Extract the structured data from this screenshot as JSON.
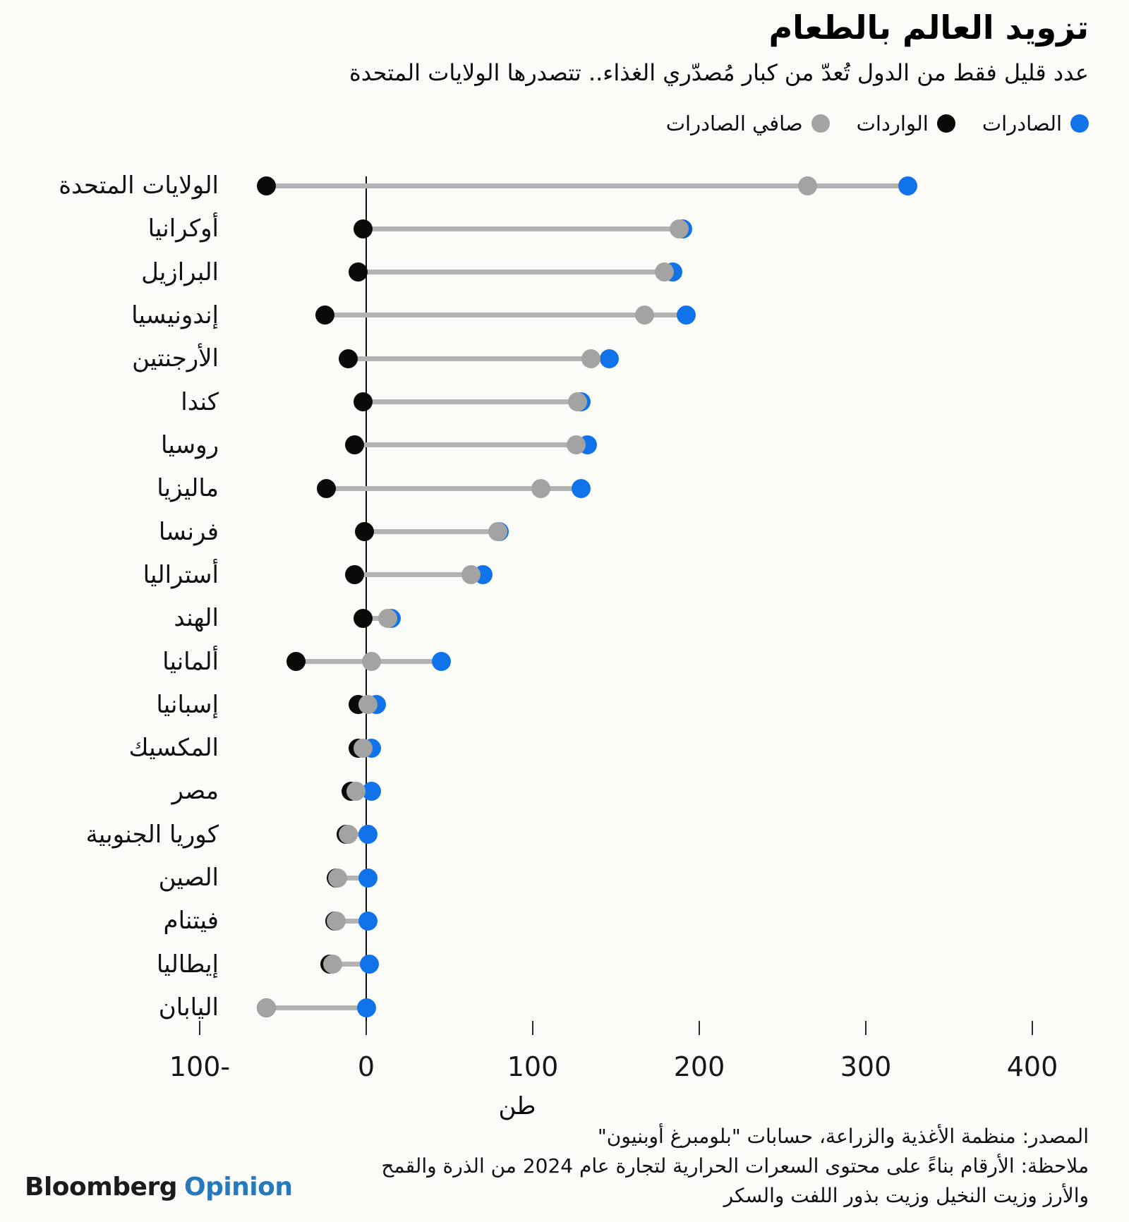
{
  "title": "تزويد العالم بالطعام",
  "subtitle": "عدد قليل فقط من الدول تُعدّ من كبار مُصدّري الغذاء.. تتصدرها الولايات المتحدة",
  "legend": [
    {
      "key": "exports",
      "label": "الصادرات",
      "color": "#1173ea"
    },
    {
      "key": "imports",
      "label": "الواردات",
      "color": "#0a0a0a"
    },
    {
      "key": "net",
      "label": "صافي الصادرات",
      "color": "#a3a3a3"
    }
  ],
  "chart_data": {
    "type": "scatter",
    "variant": "dumbbell-dot-plot",
    "title": "تزويد العالم بالطعام",
    "xlabel": "طن",
    "ylabel": "",
    "xlim": [
      -100,
      400
    ],
    "grid": false,
    "legend_position": "top-right",
    "categories": [
      "الولايات المتحدة",
      "أوكرانيا",
      "البرازيل",
      "إندونيسيا",
      "الأرجنتين",
      "كندا",
      "روسيا",
      "ماليزيا",
      "فرنسا",
      "أستراليا",
      "الهند",
      "ألمانيا",
      "إسبانيا",
      "المكسيك",
      "مصر",
      "كوريا الجنوبية",
      "الصين",
      "فيتنام",
      "إيطاليا",
      "اليابان"
    ],
    "series": [
      {
        "key": "exports",
        "name": "الصادرات",
        "color": "#1173ea",
        "values": [
          325,
          190,
          184,
          192,
          146,
          129,
          133,
          129,
          80,
          70,
          15,
          45,
          6,
          3,
          3,
          1,
          1,
          1,
          2,
          0
        ]
      },
      {
        "key": "imports",
        "name": "الواردات",
        "color": "#0a0a0a",
        "values": [
          -60,
          -2,
          -5,
          -25,
          -11,
          -2,
          -7,
          -24,
          -1,
          -7,
          -2,
          -42,
          -5,
          -5,
          -9,
          -12,
          -18,
          -19,
          -22,
          -60
        ]
      },
      {
        "key": "net",
        "name": "صافي الصادرات",
        "color": "#a3a3a3",
        "values": [
          265,
          188,
          179,
          167,
          135,
          127,
          126,
          105,
          79,
          63,
          13,
          3,
          1,
          -2,
          -6,
          -11,
          -17,
          -18,
          -20,
          -60
        ]
      }
    ],
    "x_ticks": [
      {
        "value": -100,
        "label": "100-"
      },
      {
        "value": 0,
        "label": "0"
      },
      {
        "value": 100,
        "label": "100"
      },
      {
        "value": 200,
        "label": "200"
      },
      {
        "value": 300,
        "label": "300"
      },
      {
        "value": 400,
        "label": "400"
      }
    ]
  },
  "footer": {
    "source": "المصدر: منظمة الأغذية والزراعة، حسابات \"بلومبرغ أوبنيون\"",
    "note1": "ملاحظة: الأرقام بناءً على محتوى السعرات الحرارية لتجارة عام 2024 من الذرة والقمح",
    "note2": "والأرز وزيت النخيل وزيت بذور اللفت والسكر"
  },
  "logo": {
    "bloomberg": "Bloomberg",
    "opinion": "Opinion",
    "opinion_color": "#2679bd"
  }
}
